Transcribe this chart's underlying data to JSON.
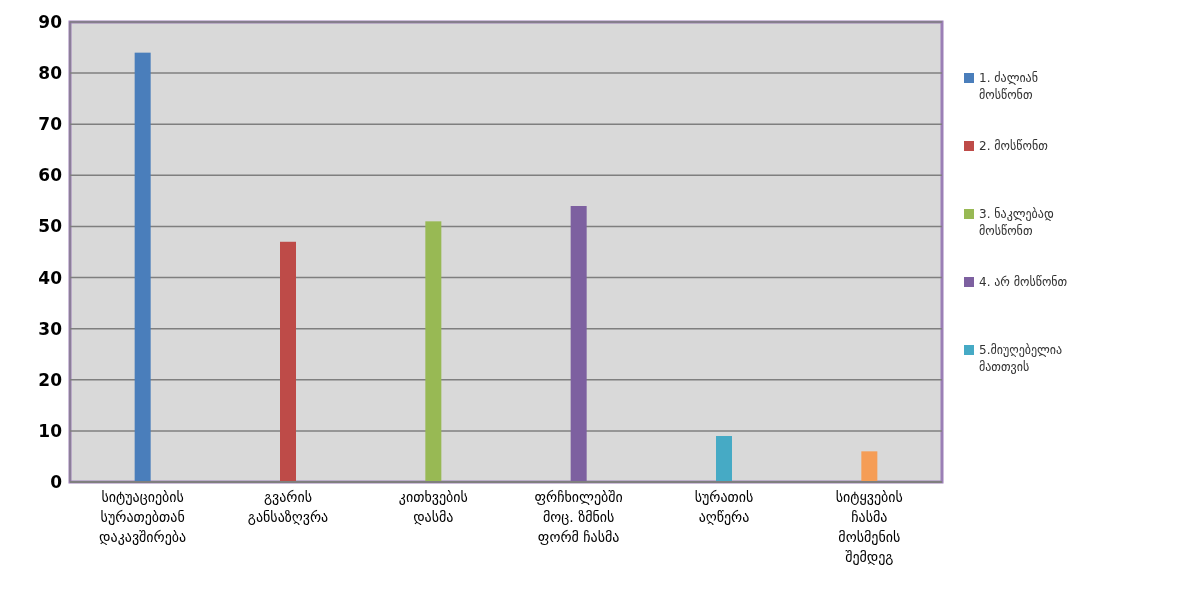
{
  "chart_data": {
    "type": "bar",
    "categories": [
      "სიტუაციების სურათებთან დაკავშირება",
      "გვარის განსაზღვრა",
      "კითხვების დასმა",
      "ფრჩხილებში მოც. ზმნის ფორმ ჩასმა",
      "სურათის აღწერა",
      "სიტყვების ჩასმა მოსმენის შემდეგ"
    ],
    "series": [
      {
        "name": "1. ძალიან მოსწონთ",
        "color": "#4a7ebb",
        "values": [
          84,
          null,
          null,
          null,
          null,
          null
        ]
      },
      {
        "name": "2. მოსწონთ",
        "color": "#be4b48",
        "values": [
          null,
          47,
          null,
          null,
          null,
          null
        ]
      },
      {
        "name": "3. ნაკლებად მოსწონთ",
        "color": "#98b954",
        "values": [
          null,
          null,
          51,
          null,
          null,
          null
        ]
      },
      {
        "name": "4. არ მოსწონთ",
        "color": "#7d60a0",
        "values": [
          null,
          null,
          null,
          54,
          null,
          null
        ]
      },
      {
        "name": "5.მიუღებელია მათთვის",
        "color": "#46aac5",
        "values": [
          null,
          null,
          null,
          null,
          9,
          null
        ]
      },
      {
        "color": "#f59d56",
        "values": [
          null,
          null,
          null,
          null,
          null,
          6
        ]
      }
    ],
    "ylim": [
      0,
      90
    ],
    "yticks": [
      0,
      10,
      20,
      30,
      40,
      50,
      60,
      70,
      80,
      90
    ],
    "grid": "y",
    "legend": "right"
  }
}
